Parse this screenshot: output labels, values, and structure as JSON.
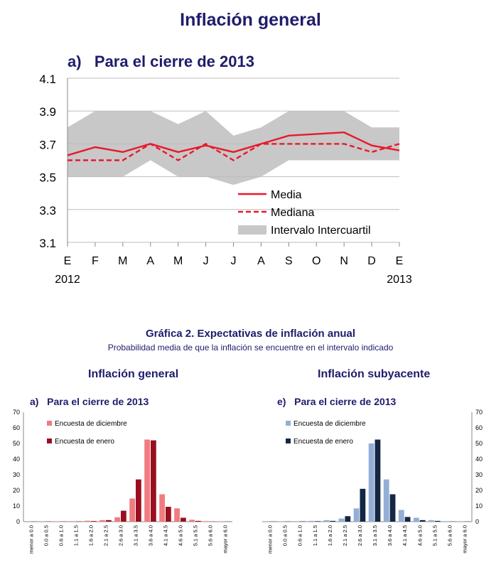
{
  "header": {
    "title": "Inflación general",
    "subtitle": "a)   Para el cierre de 2013"
  },
  "figure2": {
    "title": "Gráfica 2. Expectativas de inflación anual",
    "subtitle": "Probabilidad media de que la inflación se encuentre en el intervalo indicado",
    "left_panel_title": "Inflación general",
    "left_panel_sub": "a)   Para el cierre de 2013",
    "right_panel_title": "Inflación subyacente",
    "right_panel_sub": "e)   Para el cierre de 2013"
  },
  "colors": {
    "media": "#e8192c",
    "band": "#c8c8c8",
    "dic_general": "#f07b80",
    "ene_general": "#9a0f1f",
    "dic_sub": "#94aed6",
    "ene_sub": "#142744",
    "axis": "#888888"
  },
  "chart_data": [
    {
      "type": "line",
      "xlabel": "",
      "ylabel": "",
      "categories": [
        "E",
        "F",
        "M",
        "A",
        "M",
        "J",
        "J",
        "A",
        "S",
        "O",
        "N",
        "D",
        "E"
      ],
      "year_labels": [
        "2012",
        "2013"
      ],
      "ylim": [
        3.1,
        4.1
      ],
      "yticks": [
        "3.1",
        "3.3",
        "3.5",
        "3.7",
        "3.9",
        "4.1"
      ],
      "grid": true,
      "legend_position": "bottom-right",
      "series": [
        {
          "name": "Media",
          "style": "solid",
          "values": [
            3.63,
            3.68,
            3.65,
            3.7,
            3.65,
            3.69,
            3.65,
            3.7,
            3.75,
            3.76,
            3.77,
            3.69,
            3.66
          ]
        },
        {
          "name": "Mediana",
          "style": "dashed",
          "values": [
            3.6,
            3.6,
            3.6,
            3.7,
            3.6,
            3.7,
            3.6,
            3.7,
            3.7,
            3.7,
            3.7,
            3.65,
            3.7
          ]
        }
      ],
      "band": {
        "name": "Intervalo Intercuartil",
        "lower": [
          3.5,
          3.5,
          3.5,
          3.6,
          3.5,
          3.5,
          3.45,
          3.5,
          3.6,
          3.6,
          3.6,
          3.6,
          3.6
        ],
        "upper": [
          3.8,
          3.9,
          3.9,
          3.9,
          3.82,
          3.9,
          3.75,
          3.8,
          3.9,
          3.9,
          3.9,
          3.8,
          3.8
        ]
      }
    },
    {
      "type": "bar",
      "categories": [
        "menor a 0.0",
        "0.0 a 0.5",
        "0.6 a 1.0",
        "1.1 a 1.5",
        "1.6 a 2.0",
        "2.1 a 2.5",
        "2.6 a 3.0",
        "3.1 a 3.5",
        "3.6 a 4.0",
        "4.1 a 4.5",
        "4.6 a 5.0",
        "5.1 a 5.5",
        "5.6 a 6.0",
        "mayor a 6.0"
      ],
      "ylim": [
        0,
        70
      ],
      "yticks": [
        "0",
        "10",
        "20",
        "30",
        "40",
        "50",
        "60",
        "70"
      ],
      "legend_position": "top-left",
      "series": [
        {
          "name": "Encuesta de diciembre",
          "values": [
            0.1,
            0.1,
            0.2,
            0.3,
            0.6,
            1.0,
            2.8,
            14.8,
            52.5,
            17.5,
            8.5,
            1.2,
            0.3,
            0.1
          ]
        },
        {
          "name": "Encuesta de enero",
          "values": [
            0.1,
            0.1,
            0.1,
            0.2,
            0.4,
            1.0,
            7.0,
            27.0,
            52.0,
            9.5,
            2.5,
            0.5,
            0.1,
            0.1
          ]
        }
      ]
    },
    {
      "type": "bar",
      "categories": [
        "menor a 0.0",
        "0.0 a 0.5",
        "0.6 a 1.0",
        "1.1 a 1.5",
        "1.6 a 2.0",
        "2.1 a 2.5",
        "2.6 a 3.0",
        "3.1 a 3.5",
        "3.6 a 4.0",
        "4.1 a 4.5",
        "4.6 a 5.0",
        "5.1 a 5.5",
        "5.6 a 6.0",
        "mayor a 6.0"
      ],
      "ylim": [
        0,
        70
      ],
      "yticks": [
        "0",
        "10",
        "20",
        "30",
        "40",
        "50",
        "60",
        "70"
      ],
      "legend_position": "top-left",
      "series": [
        {
          "name": "Encuesta de diciembre",
          "values": [
            0.1,
            0.2,
            0.3,
            0.5,
            1.0,
            2.0,
            8.5,
            50.0,
            27.0,
            7.5,
            2.5,
            1.0,
            0.3,
            0.1
          ]
        },
        {
          "name": "Encuesta de enero",
          "values": [
            0.1,
            0.1,
            0.2,
            0.3,
            0.5,
            3.5,
            21.0,
            52.5,
            17.5,
            3.0,
            1.0,
            0.5,
            0.1,
            0.1
          ]
        }
      ]
    }
  ]
}
